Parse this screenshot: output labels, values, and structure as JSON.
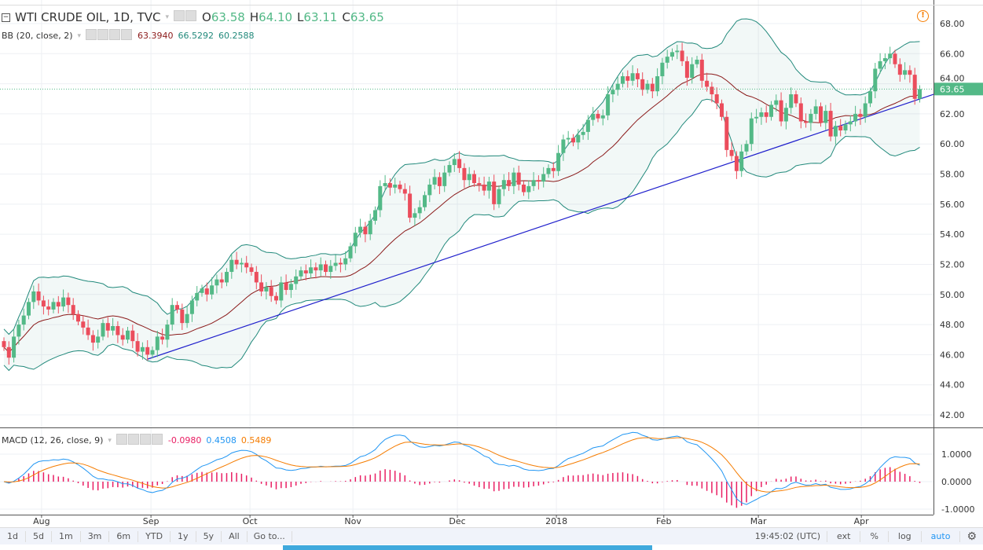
{
  "header": {
    "symbol": "WTI CRUDE OIL, 1D, TVC",
    "open_label": "O",
    "open": "63.58",
    "high_label": "H",
    "high": "64.10",
    "low_label": "L",
    "low": "63.11",
    "close_label": "C",
    "close": "63.65"
  },
  "bb_legend": {
    "name": "BB (20, close, 2)",
    "basis": "63.3940",
    "upper": "66.5292",
    "lower": "60.2588"
  },
  "macd_legend": {
    "name": "MACD (12, 26, close, 9)",
    "hist": "-0.0980",
    "macd": "0.4508",
    "signal": "0.5489"
  },
  "toolbar": {
    "ranges": [
      "1d",
      "5d",
      "1m",
      "3m",
      "6m",
      "YTD",
      "1y",
      "5y",
      "All"
    ],
    "goto": "Go to...",
    "time": "19:45:02 (UTC)",
    "ext": "ext",
    "percent": "%",
    "log": "log",
    "auto": "auto"
  },
  "colors": {
    "up": "#53b987",
    "down": "#eb4d5c",
    "bb_basis": "#8b1a1a",
    "bb_band": "#21897b",
    "trend": "#1f1fcc",
    "macd": "#2196f3",
    "signal": "#f57c00",
    "hist": "#e91e63",
    "auto": "#2196f3"
  },
  "chart_data": {
    "type": "candlestick",
    "title": "WTI CRUDE OIL, 1D, TVC",
    "price_ticks": [
      "68.00",
      "66.00",
      "64.00",
      "62.00",
      "60.00",
      "58.00",
      "56.00",
      "54.00",
      "52.00",
      "50.00",
      "48.00",
      "46.00",
      "44.00",
      "42.00"
    ],
    "ylim": [
      42,
      68
    ],
    "last_price": "63.65",
    "x_labels": [
      {
        "label": "Aug",
        "index": 7.6
      },
      {
        "label": "Sep",
        "index": 29.7
      },
      {
        "label": "Oct",
        "index": 49.7
      },
      {
        "label": "Nov",
        "index": 70.5
      },
      {
        "label": "Dec",
        "index": 91.6
      },
      {
        "label": "2018",
        "index": 111.6
      },
      {
        "label": "Feb",
        "index": 133.3
      },
      {
        "label": "Mar",
        "index": 152.4
      },
      {
        "label": "Apr",
        "index": 173.2
      }
    ],
    "closes": [
      46.5,
      45.8,
      47.2,
      48.0,
      48.6,
      49.5,
      50.2,
      49.6,
      49.2,
      49.0,
      49.5,
      49.2,
      49.8,
      49.3,
      48.7,
      48.2,
      47.8,
      47.3,
      46.8,
      47.2,
      48.1,
      47.6,
      47.9,
      47.3,
      47.0,
      47.6,
      46.9,
      46.2,
      46.5,
      46.0,
      46.3,
      47.2,
      47.0,
      48.0,
      49.3,
      49.0,
      48.1,
      48.7,
      49.6,
      50.1,
      50.4,
      50.0,
      50.6,
      51.0,
      50.8,
      51.5,
      52.3,
      52.0,
      52.1,
      51.8,
      51.5,
      50.8,
      50.2,
      50.5,
      49.9,
      49.6,
      50.8,
      50.3,
      50.7,
      51.2,
      51.6,
      51.4,
      51.8,
      51.6,
      52.0,
      51.5,
      51.9,
      52.1,
      52.0,
      52.4,
      53.2,
      54.1,
      54.5,
      54.0,
      54.9,
      55.6,
      57.2,
      57.4,
      57.1,
      57.3,
      57.0,
      56.7,
      55.1,
      55.4,
      55.8,
      56.6,
      57.3,
      57.8,
      57.2,
      58.1,
      58.6,
      59.0,
      58.4,
      57.6,
      58.0,
      57.4,
      57.3,
      56.9,
      57.5,
      56.0,
      57.0,
      57.6,
      57.2,
      58.1,
      57.3,
      56.8,
      57.2,
      57.6,
      57.5,
      58.0,
      58.4,
      58.2,
      59.4,
      60.3,
      60.4,
      60.1,
      60.6,
      60.8,
      61.6,
      62.0,
      61.7,
      61.9,
      63.3,
      63.6,
      64.0,
      64.5,
      64.2,
      64.7,
      64.3,
      63.6,
      64.0,
      63.5,
      64.5,
      65.4,
      65.8,
      66.1,
      66.2,
      65.5,
      64.4,
      65.3,
      65.6,
      64.2,
      63.8,
      63.3,
      62.7,
      61.8,
      59.6,
      59.2,
      58.2,
      59.5,
      60.0,
      61.7,
      61.8,
      62.1,
      61.8,
      62.6,
      62.9,
      61.5,
      62.4,
      63.3,
      62.7,
      61.5,
      61.4,
      62.0,
      62.5,
      61.4,
      62.2,
      60.5,
      61.2,
      60.9,
      61.3,
      61.5,
      62.0,
      61.8,
      62.7,
      63.5,
      65.0,
      65.5,
      65.7,
      66.0,
      65.3,
      64.6,
      64.9,
      64.6,
      63.0,
      63.65
    ],
    "trendline": {
      "from": [
        29,
        45.7
      ],
      "to": [
        187.8,
        63.3
      ]
    },
    "macd_ticks": [
      "1.0000",
      "0.0000",
      "-1.0000"
    ],
    "macd_ylim": [
      -1,
      1
    ]
  }
}
